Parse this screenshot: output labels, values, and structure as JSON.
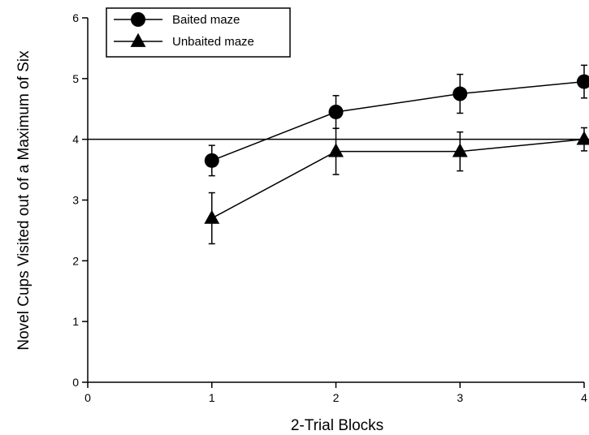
{
  "chart_data": {
    "type": "line",
    "xlabel": "2-Trial Blocks",
    "ylabel": "Novel Cups Visited out of a Maximum of Six",
    "xlim": [
      0,
      4
    ],
    "ylim": [
      0,
      6
    ],
    "x_ticks": [
      0,
      1,
      2,
      3,
      4
    ],
    "y_ticks": [
      0,
      1,
      2,
      3,
      4,
      5,
      6
    ],
    "grid": false,
    "legend_position": "top-left",
    "reference_line_y": 4,
    "series": [
      {
        "name": "Baited maze",
        "marker": "circle",
        "x": [
          1,
          2,
          3,
          4
        ],
        "y": [
          3.65,
          4.45,
          4.75,
          4.95
        ],
        "err": [
          0.25,
          0.27,
          0.32,
          0.27
        ]
      },
      {
        "name": "Unbaited maze",
        "marker": "triangle",
        "x": [
          1,
          2,
          3,
          4
        ],
        "y": [
          2.7,
          3.8,
          3.8,
          4.0
        ],
        "err": [
          0.42,
          0.38,
          0.32,
          0.19
        ]
      }
    ],
    "colors": {
      "ink": "#000000",
      "background": "#ffffff"
    }
  }
}
